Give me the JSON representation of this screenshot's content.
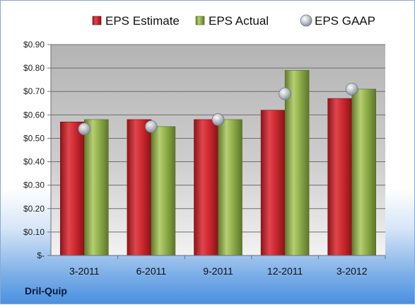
{
  "company": "Dril-Quip",
  "colors": {
    "estimate": "#c0222b",
    "actual": "#8cab46",
    "gaap": "#a9b2bf"
  },
  "chart_data": {
    "type": "bar",
    "categories": [
      "3-2011",
      "6-2011",
      "9-2011",
      "12-2011",
      "3-2012"
    ],
    "series": [
      {
        "name": "EPS Estimate",
        "kind": "bar",
        "values": [
          0.57,
          0.58,
          0.58,
          0.62,
          0.67
        ]
      },
      {
        "name": "EPS Actual",
        "kind": "bar",
        "values": [
          0.58,
          0.55,
          0.58,
          0.79,
          0.71
        ]
      },
      {
        "name": "EPS GAAP",
        "kind": "marker",
        "values": [
          0.54,
          0.55,
          0.58,
          0.69,
          0.71
        ]
      }
    ],
    "ylim": [
      0,
      0.9
    ],
    "yticks": [
      {
        "value": 0.0,
        "label": "$-"
      },
      {
        "value": 0.1,
        "label": "$0.10"
      },
      {
        "value": 0.2,
        "label": "$0.20"
      },
      {
        "value": 0.3,
        "label": "$0.30"
      },
      {
        "value": 0.4,
        "label": "$0.40"
      },
      {
        "value": 0.5,
        "label": "$0.50"
      },
      {
        "value": 0.6,
        "label": "$0.60"
      },
      {
        "value": 0.7,
        "label": "$0.70"
      },
      {
        "value": 0.8,
        "label": "$0.80"
      },
      {
        "value": 0.9,
        "label": "$0.90"
      }
    ],
    "grid": true,
    "legend_position": "top"
  }
}
